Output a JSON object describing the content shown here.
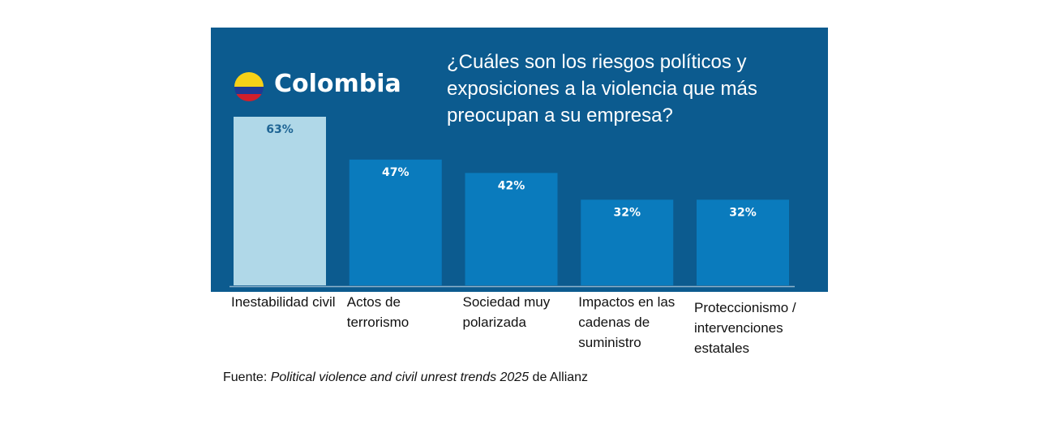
{
  "header": {
    "country": "Colombia",
    "flag_colors": [
      "#f7d117",
      "#1f3a93",
      "#d21f2b"
    ]
  },
  "chart_data": {
    "type": "bar",
    "title": "¿Cuáles son los riesgos políticos y exposiciones a la violencia que más preocupan a su empresa?",
    "categories": [
      "Inestabilidad civil",
      "Actos de terrorismo",
      "Sociedad muy polarizada",
      "Impactos en las cadenas de suministro",
      "Proteccionismo / intervenciones estatales"
    ],
    "values": [
      63,
      47,
      42,
      32,
      32
    ],
    "data_labels": [
      "63%",
      "47%",
      "42%",
      "32%",
      "32%"
    ],
    "unit": "%",
    "ylim": [
      0,
      63
    ],
    "grid": false,
    "colors": {
      "background": "#0c5b8f",
      "bar": "#0a7bbd",
      "highlight_bar": "#b0d8e8",
      "highlight_label": "#1e6494",
      "label": "#ffffff"
    }
  },
  "source": {
    "prefix": "Fuente: ",
    "title": "Political violence and civil unrest trends 2025",
    "suffix": " de Allianz"
  }
}
